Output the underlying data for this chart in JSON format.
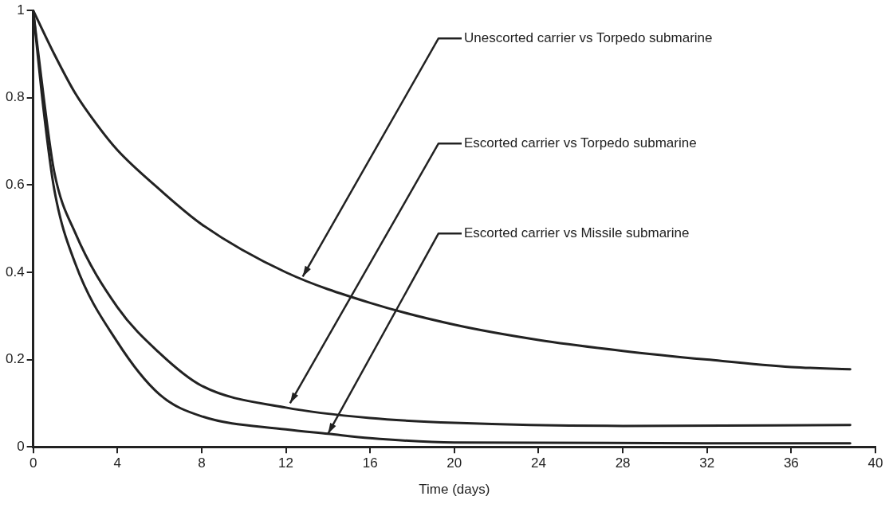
{
  "chart_data": {
    "type": "line",
    "xlabel": "Time (days)",
    "xlim": [
      0,
      40
    ],
    "xticks": [
      0,
      4,
      8,
      12,
      16,
      20,
      24,
      28,
      32,
      36,
      40
    ],
    "ylim": [
      0,
      1
    ],
    "yticks": [
      0,
      0.2,
      0.4,
      0.6,
      0.8,
      1
    ],
    "grid": false,
    "legend": false,
    "marker": "none",
    "line_style": "solid",
    "series": [
      {
        "color": "#222222",
        "x": [
          0,
          1,
          2,
          3,
          4,
          6,
          8,
          12,
          16,
          20,
          24,
          28,
          32,
          36,
          38.8
        ],
        "values": [
          1,
          0.9,
          0.81,
          0.74,
          0.68,
          0.59,
          0.51,
          0.4,
          0.33,
          0.28,
          0.245,
          0.22,
          0.2,
          0.183,
          0.178
        ]
      },
      {
        "color": "#222222",
        "x": [
          0,
          0.5,
          1,
          2,
          4,
          6,
          8,
          12,
          16,
          20,
          28,
          38.8
        ],
        "values": [
          1,
          0.8,
          0.63,
          0.49,
          0.32,
          0.215,
          0.14,
          0.09,
          0.066,
          0.055,
          0.048,
          0.05
        ]
      },
      {
        "color": "#222222",
        "x": [
          0,
          0.5,
          1,
          2,
          4,
          6,
          8,
          12,
          14,
          16,
          20,
          38.8
        ],
        "values": [
          1,
          0.77,
          0.59,
          0.42,
          0.24,
          0.12,
          0.07,
          0.04,
          0.03,
          0.02,
          0.01,
          0.008
        ]
      }
    ],
    "annotations": [
      {
        "text": "Unescorted carrier vs Torpedo submarine",
        "x": 12.8,
        "y": 0.39
      },
      {
        "text": "Escorted carrier vs Torpedo submarine",
        "x": 12.2,
        "y": 0.1
      },
      {
        "text": "Escorted carrier vs Missile submarine",
        "x": 14,
        "y": 0.03
      }
    ]
  }
}
